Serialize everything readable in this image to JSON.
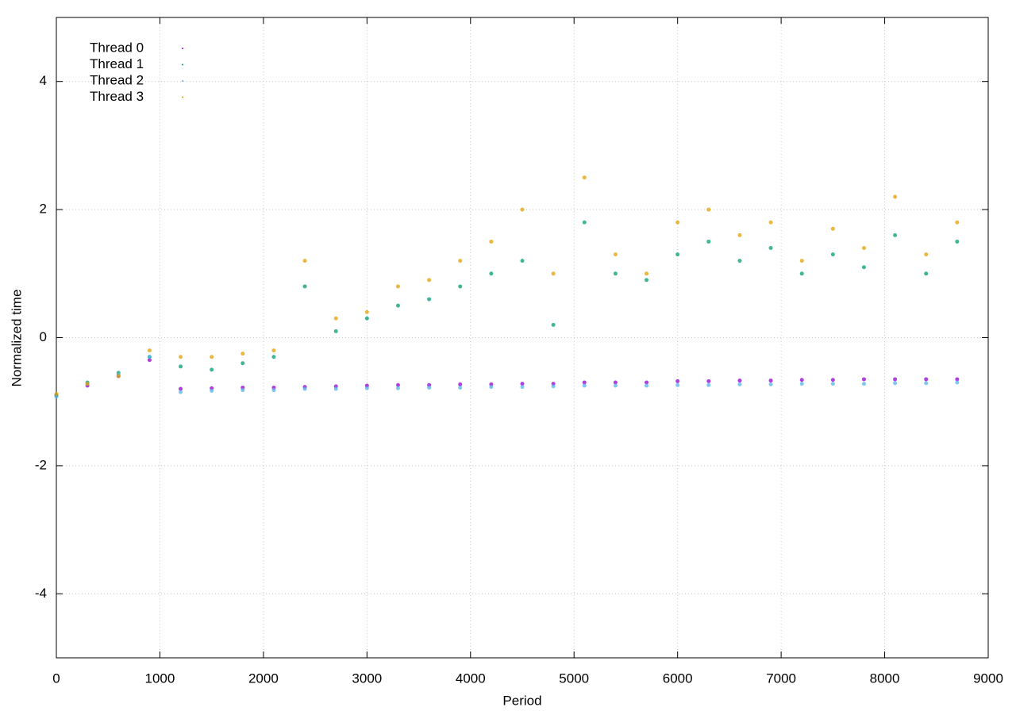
{
  "chart_data": {
    "type": "scatter",
    "x_label": "Period",
    "y_label": "Normalized time",
    "xlim": [
      0,
      9000
    ],
    "ylim": [
      -5,
      5
    ],
    "xticks": [
      0,
      1000,
      2000,
      3000,
      4000,
      5000,
      6000,
      7000,
      8000,
      9000
    ],
    "yticks": [
      -4,
      -2,
      0,
      2,
      4
    ],
    "grid": true,
    "legend": "top-left",
    "x": [
      0,
      300,
      600,
      900,
      1200,
      1500,
      1800,
      2100,
      2400,
      2700,
      3000,
      3300,
      3600,
      3900,
      4200,
      4500,
      4800,
      5100,
      5400,
      5700,
      6000,
      6300,
      6600,
      6900,
      7200,
      7500,
      7800,
      8100,
      8400,
      8700
    ],
    "series": [
      {
        "name": "Thread 0",
        "color": "#9400d3",
        "values": [
          -0.9,
          -0.75,
          -0.6,
          -0.35,
          -0.8,
          -0.79,
          -0.78,
          -0.78,
          -0.77,
          -0.76,
          -0.75,
          -0.74,
          -0.74,
          -0.73,
          -0.73,
          -0.72,
          -0.72,
          -0.7,
          -0.7,
          -0.7,
          -0.68,
          -0.68,
          -0.67,
          -0.67,
          -0.66,
          -0.66,
          -0.65,
          -0.65,
          -0.65,
          -0.65
        ]
      },
      {
        "name": "Thread 1",
        "color": "#009e73",
        "values": [
          -0.9,
          -0.7,
          -0.55,
          -0.3,
          -0.45,
          -0.5,
          -0.4,
          -0.3,
          0.8,
          0.1,
          0.3,
          0.5,
          0.6,
          0.8,
          1.0,
          1.2,
          0.2,
          1.8,
          1.0,
          0.9,
          1.3,
          1.5,
          1.2,
          1.4,
          1.0,
          1.3,
          1.1,
          1.6,
          1.0,
          1.5
        ]
      },
      {
        "name": "Thread 2",
        "color": "#56b4e9",
        "values": [
          -0.92,
          -0.72,
          -0.58,
          -0.3,
          -0.85,
          -0.83,
          -0.82,
          -0.82,
          -0.8,
          -0.8,
          -0.79,
          -0.79,
          -0.78,
          -0.78,
          -0.77,
          -0.77,
          -0.76,
          -0.75,
          -0.75,
          -0.75,
          -0.74,
          -0.74,
          -0.73,
          -0.73,
          -0.72,
          -0.72,
          -0.72,
          -0.71,
          -0.71,
          -0.7
        ]
      },
      {
        "name": "Thread 3",
        "color": "#e69f00",
        "values": [
          -0.88,
          -0.72,
          -0.6,
          -0.2,
          -0.3,
          -0.3,
          -0.25,
          -0.2,
          1.2,
          0.3,
          0.4,
          0.8,
          0.9,
          1.2,
          1.5,
          2.0,
          1.0,
          2.5,
          1.3,
          1.0,
          1.8,
          2.0,
          1.6,
          1.8,
          1.2,
          1.7,
          1.4,
          2.2,
          1.3,
          1.8
        ]
      }
    ]
  }
}
